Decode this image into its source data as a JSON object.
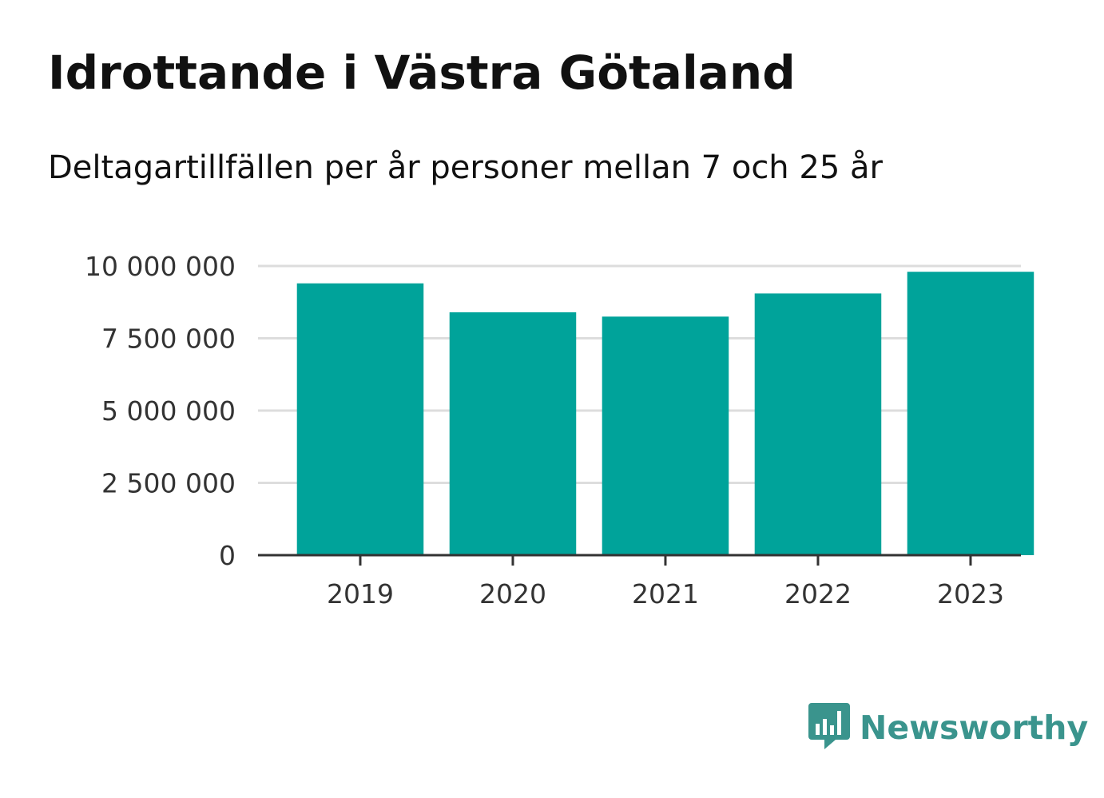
{
  "colors": {
    "bar": "#00a39a",
    "grid": "#dddddd",
    "axis": "#333333",
    "brand": "#3a948d"
  },
  "logo": {
    "text": "Newsworthy",
    "icon": "bar-chart-speech-bubble-icon"
  },
  "chart_data": {
    "type": "bar",
    "title": "Idrottande i Västra Götaland",
    "subtitle": "Deltagartillfällen per år personer mellan 7 och 25 år",
    "xlabel": "",
    "ylabel": "",
    "categories": [
      "2019",
      "2020",
      "2021",
      "2022",
      "2023"
    ],
    "values": [
      9400000,
      8400000,
      8250000,
      9050000,
      9800000
    ],
    "ylim": [
      0,
      10000000
    ],
    "yticks": [
      0,
      2500000,
      5000000,
      7500000,
      10000000
    ],
    "ytick_labels": [
      "0",
      "2 500 000",
      "5 000 000",
      "7 500 000",
      "10 000 000"
    ],
    "grid": true,
    "legend": "none"
  }
}
